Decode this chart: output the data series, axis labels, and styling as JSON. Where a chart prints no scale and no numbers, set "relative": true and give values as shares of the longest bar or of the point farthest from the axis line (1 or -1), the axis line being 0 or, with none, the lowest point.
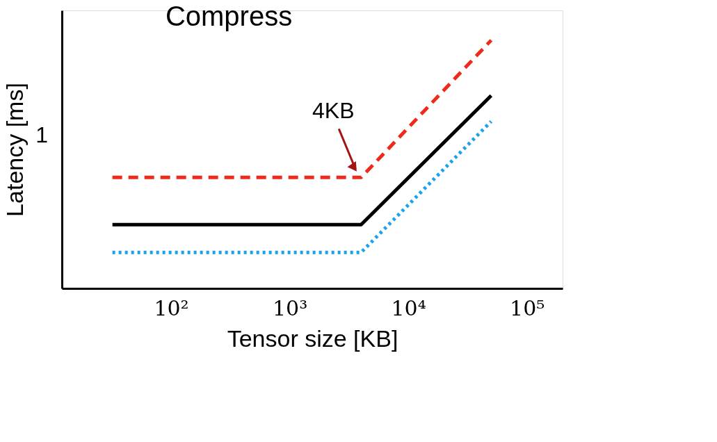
{
  "chart_data": {
    "type": "line",
    "title": "Compress",
    "xlabel": "Tensor size [KB]",
    "ylabel": "Latency [ms]",
    "relative": true,
    "log": "x",
    "grid": false,
    "marker": "none",
    "x": [
      32,
      4000,
      50000
    ],
    "xlim": [
      12,
      200000
    ],
    "xticks": [
      {
        "value": 100,
        "label": "10²"
      },
      {
        "value": 1000,
        "label": "10³"
      },
      {
        "value": 10000,
        "label": "10⁴"
      },
      {
        "value": 100000,
        "label": "10⁵"
      }
    ],
    "series": [
      {
        "color": "#ee2a1b",
        "line_style": "dashed",
        "values": [
          0.447,
          0.447,
          1
        ]
      },
      {
        "color": "#000000",
        "line_style": "solid",
        "values": [
          0.257,
          0.257,
          0.777
        ]
      },
      {
        "color": "#1aa3e8",
        "line_style": "dotted",
        "values": [
          0.145,
          0.145,
          0.673
        ]
      }
    ],
    "annotations": [
      "1",
      {
        "text": "4KB",
        "x": 4000,
        "y": 0.447
      }
    ]
  }
}
